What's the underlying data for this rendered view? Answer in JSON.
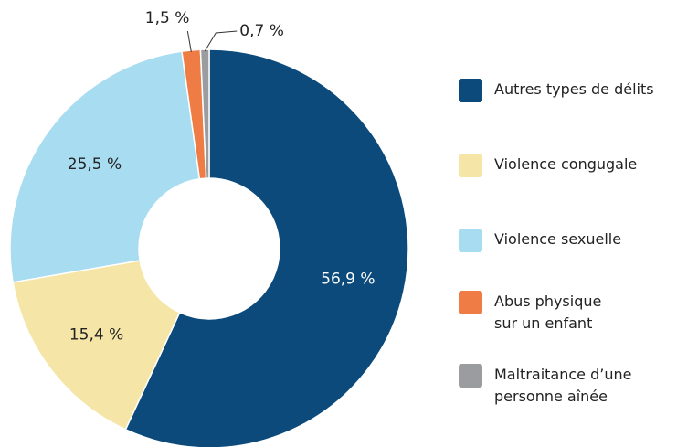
{
  "chart_data": {
    "type": "donut",
    "series": [
      {
        "name": "Autres types de délits",
        "color": "#0b4a7a",
        "values": [
          56.9
        ],
        "value_labels": [
          "56,9 %"
        ]
      },
      {
        "name": "Violence congugale",
        "color": "#f5e6a8",
        "values": [
          15.4
        ],
        "value_labels": [
          "15,4 %"
        ]
      },
      {
        "name": "Violence sexuelle",
        "color": "#a8dcf0",
        "values": [
          25.5
        ],
        "value_labels": [
          "25,5 %"
        ]
      },
      {
        "name": "Abus physique\nsur un enfant",
        "color": "#f07c45",
        "values": [
          1.5
        ],
        "value_labels": [
          "1,5 %"
        ]
      },
      {
        "name": "Maltraitance d’une\npersonne aînée",
        "color": "#9a9ca0",
        "values": [
          0.7
        ],
        "value_labels": [
          "0,7 %"
        ]
      }
    ]
  }
}
